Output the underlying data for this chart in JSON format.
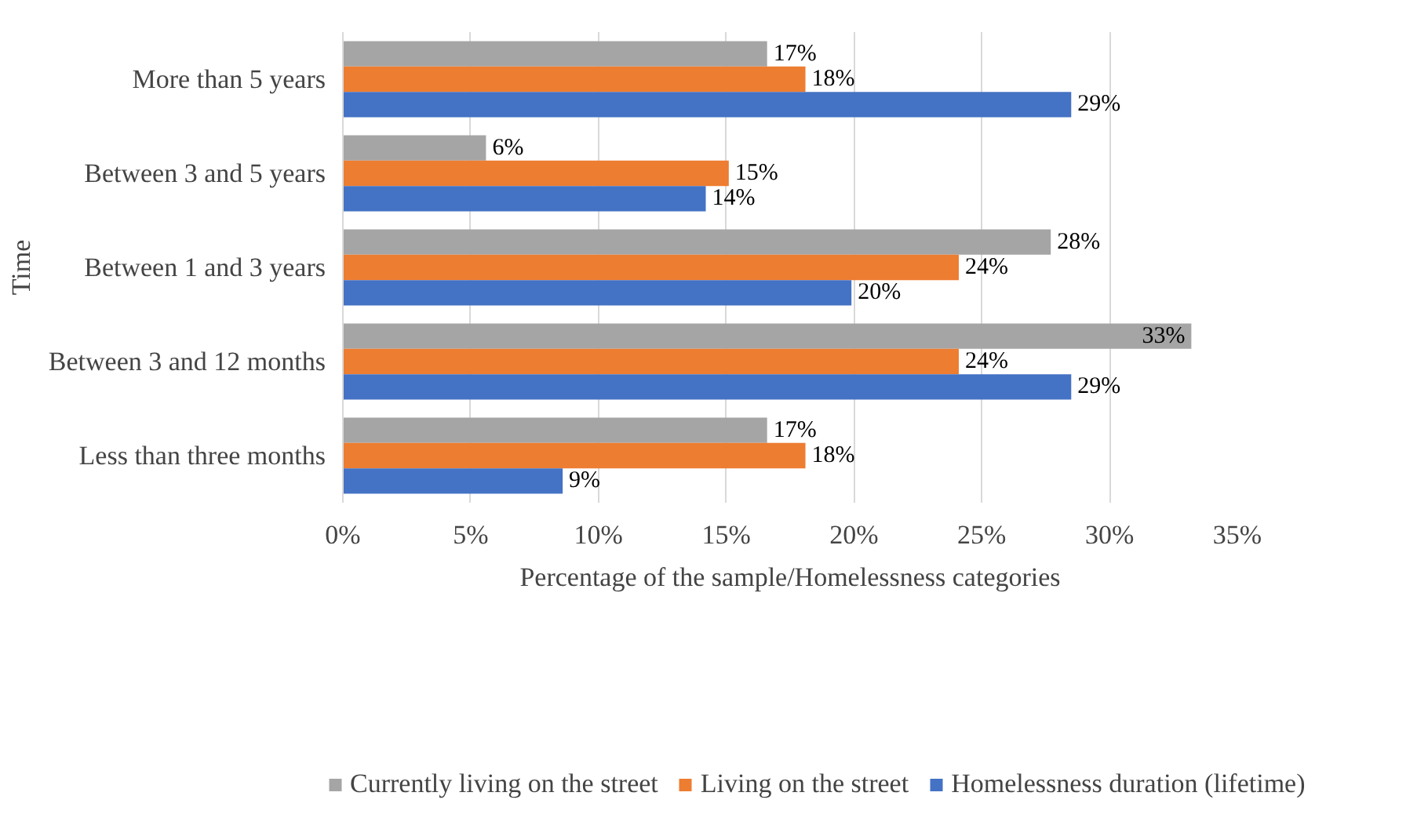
{
  "chart_data": {
    "type": "bar",
    "orientation": "horizontal",
    "xlabel": "Percentage of the sample/Homelessness categories",
    "ylabel": "Time",
    "categories": [
      "More than 5 years",
      "Between 3 and 5 years",
      "Between 1 and 3 years",
      "Between 3 and 12 months",
      "Less than three months"
    ],
    "series": [
      {
        "name": "Currently living on the street",
        "color": "#a5a5a5",
        "values": [
          16.6,
          5.6,
          27.7,
          33.2,
          16.6
        ],
        "value_labels": [
          "17%",
          "6%",
          "28%",
          "33%",
          "17%"
        ]
      },
      {
        "name": "Living on the street",
        "color": "#ed7d31",
        "values": [
          18.1,
          15.1,
          24.1,
          24.1,
          18.1
        ],
        "value_labels": [
          "18%",
          "15%",
          "24%",
          "24%",
          "18%"
        ]
      },
      {
        "name": "Homelessness duration (lifetime)",
        "color": "#4472c4",
        "values": [
          28.5,
          14.2,
          19.9,
          28.5,
          8.6
        ],
        "value_labels": [
          "29%",
          "14%",
          "20%",
          "29%",
          "9%"
        ]
      }
    ],
    "xlim": [
      0,
      35
    ],
    "xticks": [
      {
        "value": 0,
        "label": "0%"
      },
      {
        "value": 5,
        "label": "5%"
      },
      {
        "value": 10,
        "label": "10%"
      },
      {
        "value": 15,
        "label": "15%"
      },
      {
        "value": 20,
        "label": "20%"
      },
      {
        "value": 25,
        "label": "25%"
      },
      {
        "value": 30,
        "label": "30%"
      },
      {
        "value": 35,
        "label": "35%"
      }
    ],
    "grid": "x",
    "legend": "bottom"
  }
}
